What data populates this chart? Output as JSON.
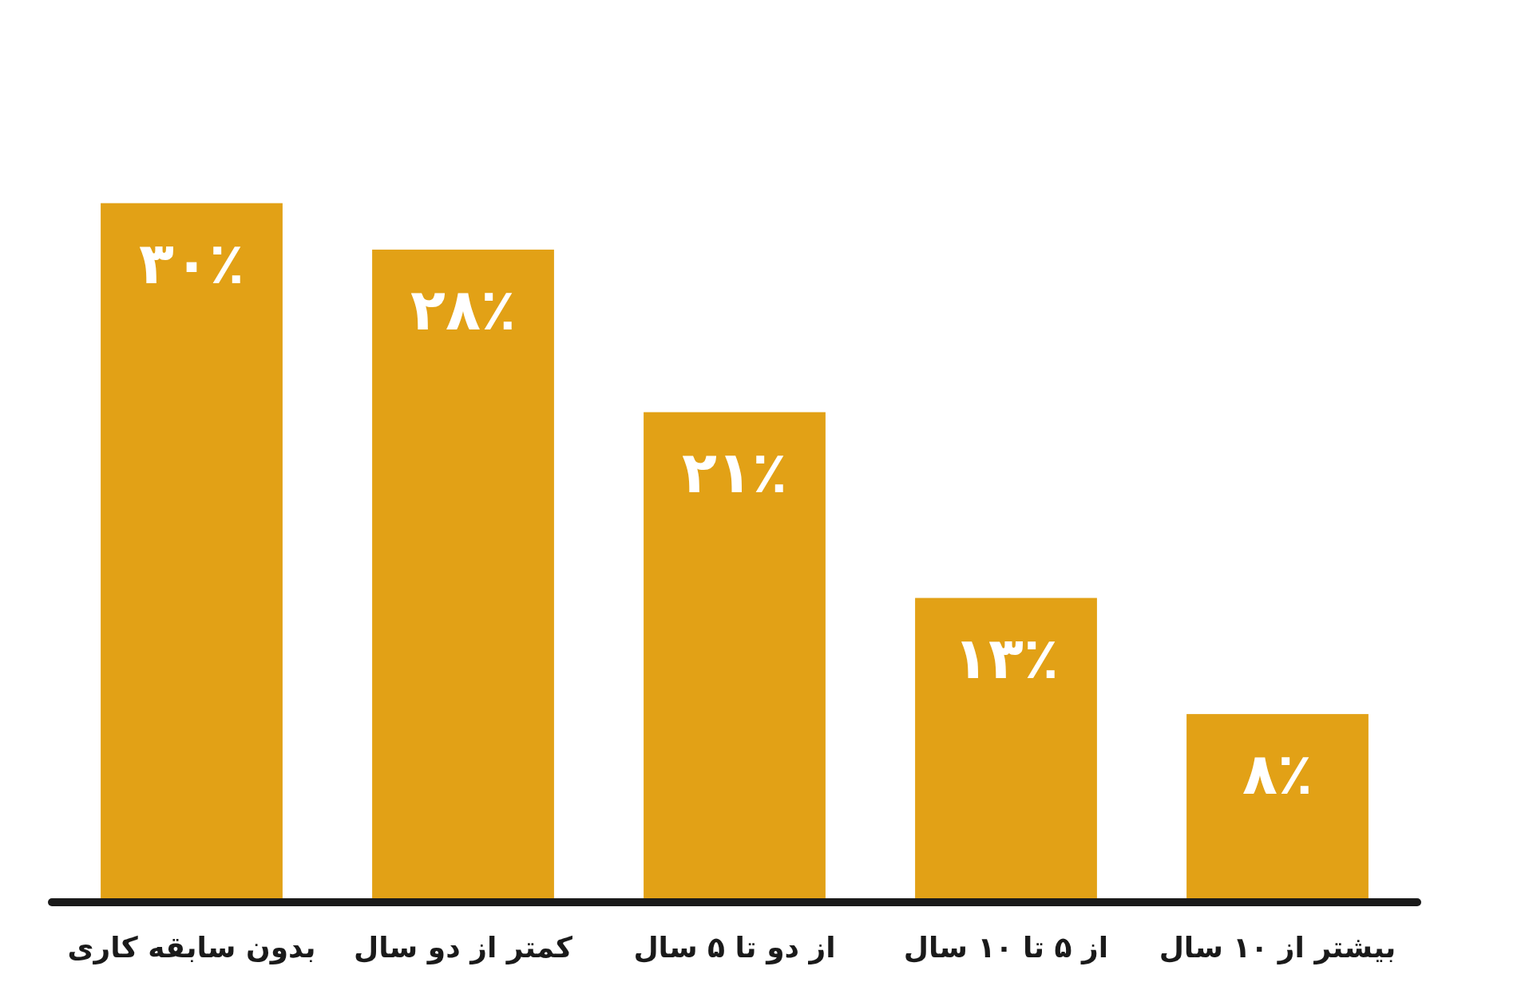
{
  "chart_data": {
    "type": "bar",
    "categories": [
      "بدون سابقه کاری",
      "کمتر از دو سال",
      "از دو تا ۵ سال",
      "از ۵ تا ۱۰ سال",
      "بیشتر از ۱۰ سال"
    ],
    "values": [
      30,
      28,
      21,
      13,
      8
    ],
    "value_labels": [
      "۳۰٪",
      "۲۸٪",
      "۲۱٪",
      "۱۳٪",
      "۸٪"
    ],
    "color": "#e2a116"
  }
}
